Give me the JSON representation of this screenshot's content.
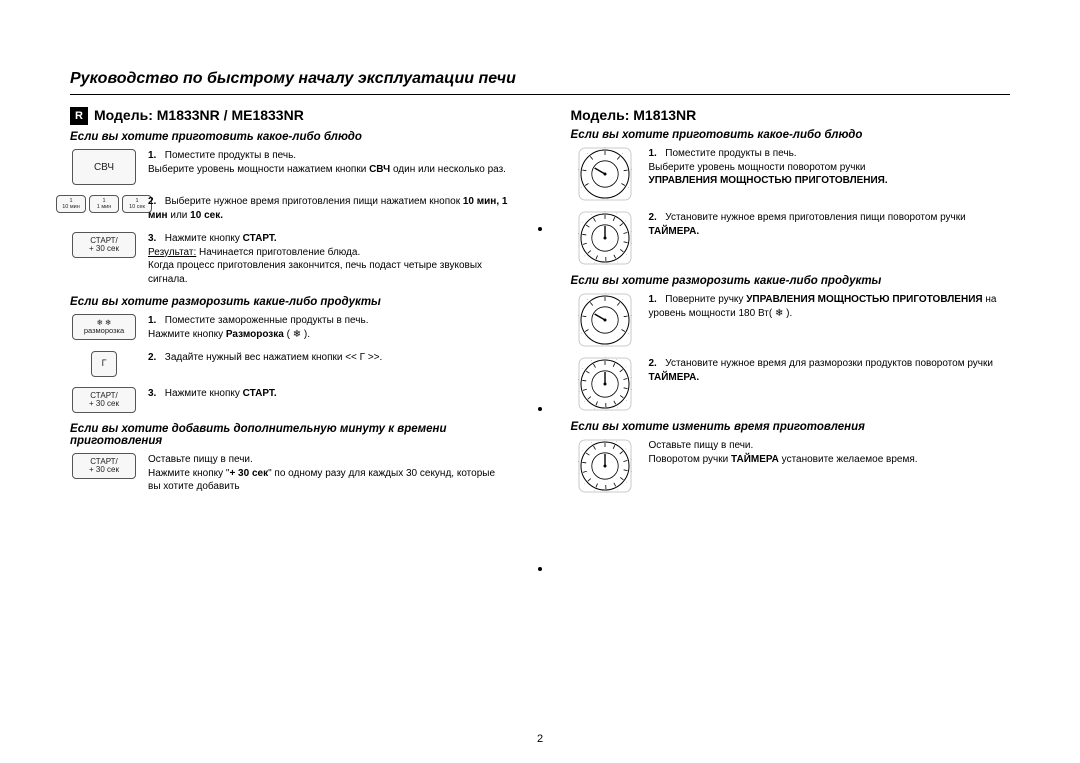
{
  "page": {
    "title": "Руководство по быстрому началу эксплуатации печи",
    "number": "2",
    "r_badge": "R"
  },
  "left": {
    "model": "Модель: M1833NR / ME1833NR",
    "cook": {
      "heading": "Если вы хотите приготовить какое-либо блюдо",
      "btn_svch": "СВЧ",
      "step1": "Поместите продукты в печь.\nВыберите уровень мощности нажатием кнопки ",
      "step1_bold": "СВЧ",
      "step1_tail": " один или несколько раз.",
      "btns_time": {
        "a": "1\n10 мин",
        "b": "1\n1 мин",
        "c": "1\n10 сек"
      },
      "step2": "Выберите нужное время приготовления пищи нажатием кнопок ",
      "step2_bold": "10 мин, 1 мин",
      "step2_mid": " или ",
      "step2_bold2": "10 сек.",
      "btn_start": "СТАРТ/\n+ 30 сек",
      "step3": "Нажмите кнопку ",
      "step3_bold": "СТАРТ.",
      "result_label": "Результат:",
      "result_text": " Начинается приготовление блюда.\nКогда процесс приготовления закончится, печь подаст четыре звуковых сигнала."
    },
    "defrost": {
      "heading": "Если вы хотите разморозить какие-либо продукты",
      "btn_defrost": "❄ ❄\nразморозка",
      "step1": "Поместите замороженные продукты в печь.\nНажмите кнопку ",
      "step1_bold": "Разморозка",
      "step1_tail": " ( ❄ ).",
      "btn_g": "Г",
      "step2": "Задайте нужный вес нажатием кнопки << Г >>.",
      "btn_start": "СТАРТ/\n+ 30 сек",
      "step3": "Нажмите кнопку ",
      "step3_bold": "СТАРТ."
    },
    "add_minute": {
      "heading": "Если вы хотите добавить дополнительную минуту к времени приготовления",
      "btn_start": "СТАРТ/\n+ 30 сек",
      "text1": "Оставьте пищу в печи.\nНажмите кнопку \"",
      "text1_bold": "+ 30 сек",
      "text1_tail": "\" по одному разу для каждых 30 секунд, которые вы хотите добавить"
    }
  },
  "right": {
    "model": "Модель: M1813NR",
    "cook": {
      "heading": "Если вы хотите приготовить какое-либо блюдо",
      "step1": "Поместите продукты в печь.\nВыберите уровень мощности поворотом ручки ",
      "step1_bold": "УПРАВЛЕНИЯ МОЩНОСТЬЮ ПРИГОТОВЛЕНИЯ.",
      "step2": "Установите нужное время приготовления пищи поворотом ручки ",
      "step2_bold": "ТАЙМЕРА."
    },
    "defrost": {
      "heading": "Если вы хотите разморозить какие-либо продукты",
      "step1": "Поверните ручку ",
      "step1_bold": "УПРАВЛЕНИЯ МОЩНОСТЬЮ ПРИГОТОВЛЕНИЯ",
      "step1_tail": " на уровень мощности 180 Вт( ❄ ).",
      "step2": "Установите нужное время для разморозки продуктов поворотом ручки ",
      "step2_bold": "ТАЙМЕРА."
    },
    "change_time": {
      "heading": "Если вы хотите изменить время приготовления",
      "text1": "Оставьте пищу в печи.\nПоворотом ручки ",
      "text1_bold": "ТАЙМЕРА",
      "text1_tail": " установите желаемое время."
    }
  },
  "dial": {
    "power_ticks": 7,
    "timer_ticks": 14,
    "stroke": "#000",
    "fill": "#fff",
    "size": 54
  }
}
